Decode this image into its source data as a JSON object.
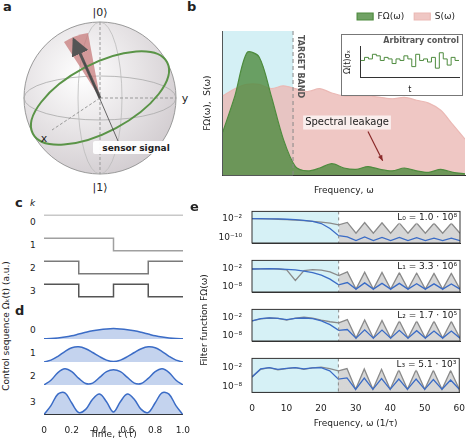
{
  "diagram": {
    "panel": "a",
    "labels": {
      "north": "|0⟩",
      "south": "|1⟩",
      "x": "x",
      "y": "y",
      "signal": "sensor signal"
    }
  },
  "chart_data": [
    {
      "panel": "b",
      "type": "area",
      "xlabel": "Frequency, ω",
      "ylabel": "FΩ(ω),  S(ω)",
      "xlim": [
        0,
        10
      ],
      "ylim": [
        0,
        1
      ],
      "tick_labels": false,
      "grid": false,
      "legend": "top",
      "target_band": [
        0,
        2.9
      ],
      "band_label": "TARGET BAND",
      "annotation": "Spectral leakage",
      "x": [
        0,
        0.5,
        1,
        1.5,
        2,
        2.5,
        3,
        3.5,
        4,
        4.5,
        5,
        5.5,
        6,
        6.5,
        7,
        7.5,
        8,
        8.5,
        9,
        9.5,
        10
      ],
      "series": [
        {
          "name": "FΩ(ω)",
          "color": "#4e8b3e",
          "values": [
            0.3,
            0.55,
            0.85,
            0.82,
            0.55,
            0.25,
            0.06,
            0.03,
            0.05,
            0.08,
            0.05,
            0.04,
            0.06,
            0.04,
            0.03,
            0.05,
            0.03,
            0.02,
            0.04,
            0.02,
            0.01
          ]
        },
        {
          "name": "S(ω)",
          "color": "#ebb9b5",
          "values": [
            0.55,
            0.6,
            0.63,
            0.63,
            0.6,
            0.62,
            0.6,
            0.58,
            0.6,
            0.57,
            0.55,
            0.55,
            0.55,
            0.54,
            0.53,
            0.54,
            0.52,
            0.5,
            0.45,
            0.35,
            0.25
          ]
        }
      ],
      "inset": {
        "type": "line",
        "title": "Arbitrary control",
        "xlabel": "t",
        "ylabel": "Ω(t)σₓ",
        "xlim": [
          0,
          1
        ],
        "ylim": [
          -1,
          1
        ],
        "tick_labels": false,
        "grid": false,
        "line_style": "stepped",
        "color": "#4e8b3e",
        "x": [
          0,
          0.04,
          0.08,
          0.12,
          0.16,
          0.2,
          0.24,
          0.28,
          0.32,
          0.36,
          0.4,
          0.44,
          0.48,
          0.52,
          0.56,
          0.6,
          0.64,
          0.68,
          0.72,
          0.76,
          0.8,
          0.84,
          0.88,
          0.92,
          0.96,
          1
        ],
        "values": [
          0.1,
          0.3,
          0.2,
          0.5,
          0.4,
          0.1,
          0.3,
          0.2,
          -0.1,
          0.2,
          0.1,
          0.4,
          0.2,
          -0.3,
          0.5,
          0.1,
          0.2,
          0,
          0.3,
          -0.4,
          0.6,
          0.2,
          -0.2,
          0.3,
          0.1,
          0.1
        ]
      }
    },
    {
      "panel": "c",
      "type": "line",
      "line_style": "stepped",
      "ylabel": "Control sequence Ωₖ(t) (a.u.)",
      "row_header": "k",
      "xlim": [
        0,
        1
      ],
      "tick_labels": false,
      "grid": false,
      "rows": [
        {
          "k": 0,
          "color": "#c8c8c8",
          "ylim": [
            -1.5,
            1.5
          ],
          "x": [
            0,
            1
          ],
          "values": [
            1,
            1
          ]
        },
        {
          "k": 1,
          "color": "#a0a0a0",
          "ylim": [
            -1.5,
            1.5
          ],
          "x": [
            0,
            0.5,
            1
          ],
          "values": [
            1,
            -1,
            -1
          ]
        },
        {
          "k": 2,
          "color": "#7a7a7a",
          "ylim": [
            -1.5,
            1.5
          ],
          "x": [
            0,
            0.25,
            0.75,
            1
          ],
          "values": [
            1,
            -1,
            1,
            1
          ]
        },
        {
          "k": 3,
          "color": "#555555",
          "ylim": [
            -1.5,
            1.5
          ],
          "x": [
            0,
            0.25,
            0.5,
            0.75,
            1
          ],
          "values": [
            1,
            -1,
            1,
            -1,
            -1
          ]
        }
      ]
    },
    {
      "panel": "d",
      "type": "area",
      "xlabel": "Time, t (τ)",
      "xlim": [
        0,
        1
      ],
      "xticks": [
        0,
        0.2,
        0.4,
        0.6,
        0.8,
        {
          "value": 1,
          "label": "1.0"
        }
      ],
      "tick_labels": "x",
      "grid": false,
      "x": [
        0,
        0.05,
        0.1,
        0.15,
        0.2,
        0.25,
        0.3,
        0.35,
        0.4,
        0.45,
        0.5,
        0.55,
        0.6,
        0.65,
        0.7,
        0.75,
        0.8,
        0.85,
        0.9,
        0.95,
        1
      ],
      "rows": [
        {
          "k": 0,
          "color": "#3b6cc6",
          "ylim": [
            0,
            1
          ],
          "values": [
            0.01,
            0.02,
            0.05,
            0.1,
            0.17,
            0.26,
            0.35,
            0.43,
            0.49,
            0.53,
            0.55,
            0.53,
            0.49,
            0.43,
            0.35,
            0.26,
            0.17,
            0.1,
            0.05,
            0.02,
            0.01
          ]
        },
        {
          "k": 1,
          "color": "#3b6cc6",
          "ylim": [
            0,
            1
          ],
          "values": [
            0,
            0.1,
            0.3,
            0.55,
            0.75,
            0.8,
            0.7,
            0.5,
            0.28,
            0.1,
            0.02,
            0.1,
            0.28,
            0.5,
            0.7,
            0.8,
            0.75,
            0.55,
            0.3,
            0.1,
            0
          ]
        },
        {
          "k": 2,
          "color": "#3b6cc6",
          "ylim": [
            0,
            1
          ],
          "values": [
            0,
            0.25,
            0.65,
            0.85,
            0.7,
            0.35,
            0.08,
            0.1,
            0.4,
            0.7,
            0.8,
            0.7,
            0.4,
            0.1,
            0.08,
            0.35,
            0.7,
            0.85,
            0.65,
            0.25,
            0
          ]
        },
        {
          "k": 3,
          "color": "#3b6cc6",
          "ylim": [
            0,
            1
          ],
          "values": [
            0,
            0.35,
            0.8,
            0.85,
            0.45,
            0.08,
            0.2,
            0.6,
            0.8,
            0.5,
            0.1,
            0.5,
            0.8,
            0.6,
            0.2,
            0.08,
            0.45,
            0.85,
            0.8,
            0.35,
            0
          ]
        }
      ]
    },
    {
      "panel": "e",
      "type": "line",
      "log": "y",
      "xlabel": "Frequency, ω (1/τ)",
      "ylabel": "Filter function FΩ(ω)",
      "xlim": [
        0,
        60
      ],
      "xticks": [
        0,
        10,
        20,
        30,
        40,
        50,
        60
      ],
      "grid": false,
      "target_band": [
        0,
        25
      ],
      "x": [
        0,
        2.5,
        5,
        7.5,
        10,
        12.5,
        15,
        17.5,
        20,
        22.5,
        25,
        27.5,
        30,
        32.5,
        35,
        37.5,
        40,
        42.5,
        45,
        47.5,
        50,
        52.5,
        55,
        57.5,
        60
      ],
      "rows": [
        {
          "annotation": "L₀ = 1.0 · 10⁸",
          "ylim": [
            1e-12,
            10
          ],
          "yticks": [
            {
              "value": 0.01,
              "label": "10⁻²"
            },
            {
              "value": 1e-10,
              "label": "10⁻¹⁰"
            }
          ],
          "series": [
            {
              "type": "area",
              "color": "#8a8a8a",
              "values": [
                0.01,
                0.009,
                0.008,
                0.006,
                0.004,
                0.0025,
                0.0015,
                0.0008,
                0.0004,
                0.00015,
                3e-05,
                0.0003,
                1e-08,
                0.00025,
                1e-08,
                0.0002,
                1e-08,
                0.00018,
                1e-08,
                0.00015,
                1e-08,
                0.00013,
                1e-08,
                0.00012,
                1e-08
              ]
            },
            {
              "type": "line",
              "color": "#3b6cc6",
              "values": [
                0.01,
                0.01,
                0.009,
                0.008,
                0.006,
                0.004,
                0.002,
                0.0008,
                0.0001,
                1e-06,
                1e-09,
                3e-10,
                1e-11,
                3e-10,
                1e-11,
                2e-10,
                1e-11,
                2e-10,
                1e-11,
                1.5e-10,
                1e-11,
                1e-10,
                1e-11,
                1e-10,
                1e-11
              ]
            }
          ]
        },
        {
          "annotation": "L₁ = 3.3 · 10⁶",
          "ylim": [
            1e-10,
            10
          ],
          "yticks": [
            {
              "value": 0.01,
              "label": "10⁻²"
            },
            {
              "value": 1e-08,
              "label": "10⁻⁸"
            }
          ],
          "series": [
            {
              "type": "area",
              "color": "#8a8a8a",
              "values": [
                0.01,
                0.012,
                0.013,
                0.01,
                0.005,
                1e-06,
                0.003,
                0.006,
                0.004,
                0.001,
                5e-05,
                0.001,
                1e-09,
                0.0008,
                1e-09,
                0.0006,
                1e-09,
                0.0005,
                1e-09,
                0.0004,
                1e-09,
                0.0003,
                1e-09,
                0.0003,
                1e-09
              ]
            },
            {
              "type": "line",
              "color": "#3b6cc6",
              "values": [
                0.01,
                0.012,
                0.013,
                0.011,
                0.008,
                0.005,
                0.002,
                0.0006,
                8e-05,
                3e-06,
                3e-08,
                2e-07,
                1e-09,
                1.5e-07,
                1e-09,
                1e-07,
                1e-09,
                1e-07,
                1e-09,
                8e-08,
                1e-09,
                7e-08,
                1e-09,
                6e-08,
                1e-09
              ]
            }
          ]
        },
        {
          "annotation": "L₂ = 1.7 · 10⁵",
          "ylim": [
            1e-10,
            10
          ],
          "yticks": [
            {
              "value": 0.01,
              "label": "10⁻²"
            },
            {
              "value": 1e-08,
              "label": "10⁻⁸"
            }
          ],
          "series": [
            {
              "type": "area",
              "color": "#8a8a8a",
              "values": [
                0.001,
                0.005,
                0.01,
                0.008,
                0.002,
                0.01,
                0.02,
                0.01,
                0.002,
                0.0005,
                0.0002,
                0.003,
                1e-09,
                0.002,
                1e-09,
                0.0015,
                1e-09,
                0.001,
                1e-09,
                0.001,
                1e-09,
                0.0008,
                1e-09,
                0.0007,
                1e-09
              ]
            },
            {
              "type": "line",
              "color": "#3b6cc6",
              "values": [
                0.001,
                0.006,
                0.012,
                0.008,
                0.003,
                0.008,
                0.01,
                0.006,
                0.001,
                5e-05,
                5e-07,
                1e-06,
                1e-09,
                8e-07,
                1e-09,
                6e-07,
                1e-09,
                5e-07,
                1e-09,
                4e-07,
                1e-09,
                3e-07,
                1e-09,
                3e-07,
                1e-09
              ]
            }
          ]
        },
        {
          "annotation": "L₃ = 5.1 · 10³",
          "ylim": [
            1e-10,
            10
          ],
          "yticks": [
            {
              "value": 0.01,
              "label": "10⁻²"
            },
            {
              "value": 1e-08,
              "label": "10⁻⁸"
            }
          ],
          "series": [
            {
              "type": "area",
              "color": "#8a8a8a",
              "values": [
                1e-05,
                0.003,
                0.01,
                0.002,
                0.005,
                0.01,
                0.003,
                0.008,
                0.015,
                0.005,
                0.001,
                0.005,
                1e-09,
                0.004,
                1e-09,
                0.003,
                1e-09,
                0.002,
                1e-09,
                0.002,
                1e-09,
                0.0015,
                1e-09,
                0.0012,
                1e-09
              ]
            },
            {
              "type": "line",
              "color": "#3b6cc6",
              "values": [
                1e-05,
                0.004,
                0.01,
                0.003,
                0.006,
                0.01,
                0.004,
                0.008,
                0.01,
                0.001,
                2e-06,
                5e-06,
                1e-09,
                4e-06,
                1e-09,
                3e-06,
                1e-09,
                2e-06,
                1e-09,
                2e-06,
                1e-09,
                1.5e-06,
                1e-09,
                1e-06,
                1e-09
              ]
            }
          ]
        }
      ]
    }
  ]
}
